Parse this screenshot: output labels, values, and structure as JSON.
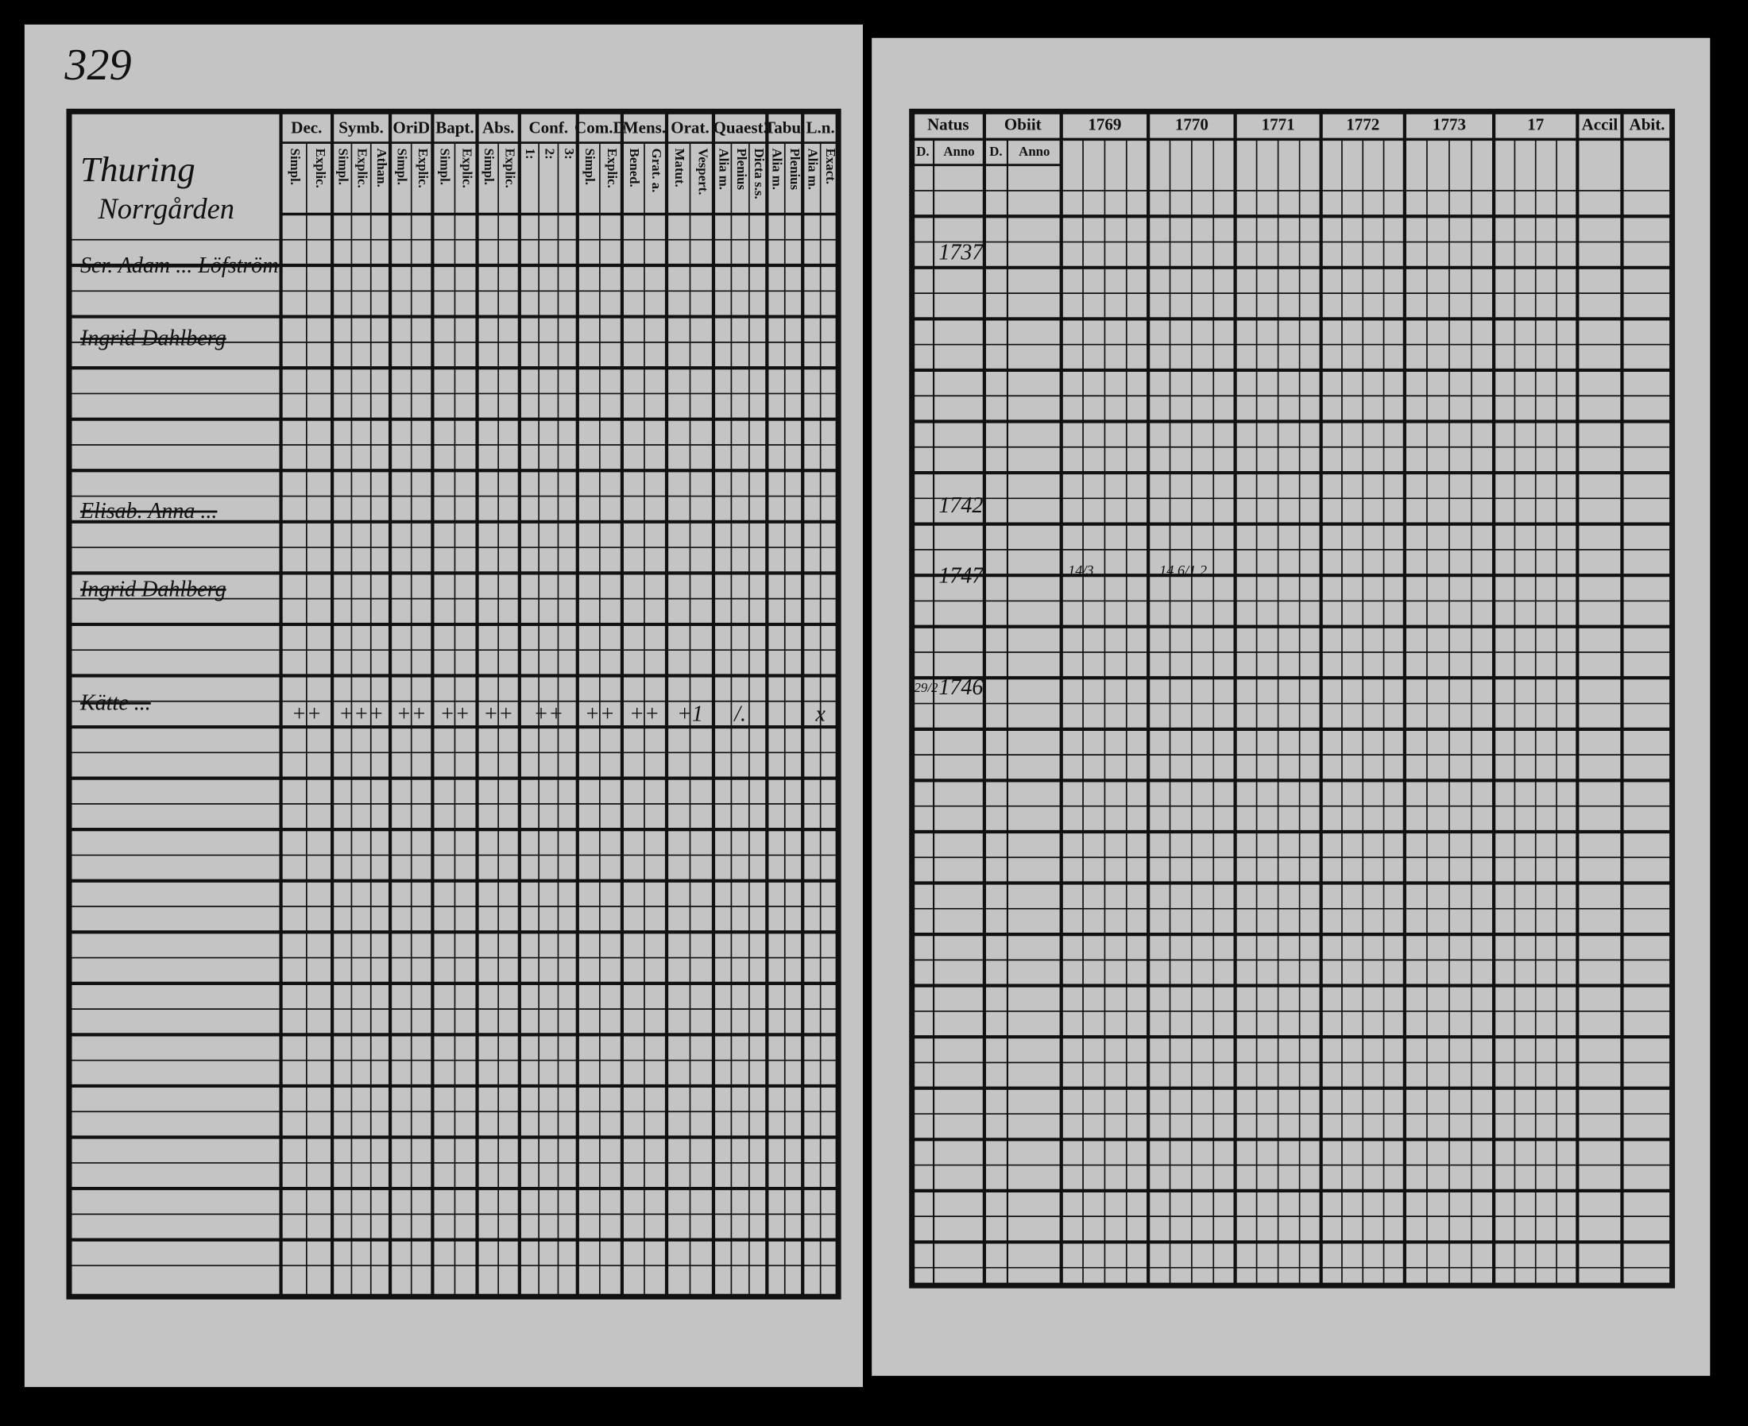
{
  "page_number": "329",
  "left_page": {
    "title": [
      "Thuring",
      "Norrgården"
    ],
    "column_groups": [
      {
        "label": "Dec.",
        "sub": [
          "Simpl.",
          "Explic."
        ]
      },
      {
        "label": "Symb.",
        "sub": [
          "Simpl.",
          "Explic.",
          "Athan."
        ]
      },
      {
        "label": "OriD",
        "sub": [
          "Simpl.",
          "Explic."
        ]
      },
      {
        "label": "Bapt.",
        "sub": [
          "Simpl.",
          "Explic."
        ]
      },
      {
        "label": "Abs.",
        "sub": [
          "Simpl.",
          "Explic."
        ]
      },
      {
        "label": "Conf.",
        "sub": [
          "1:",
          "2:",
          "3:"
        ]
      },
      {
        "label": "Com.D",
        "sub": [
          "Simpl.",
          "Explic."
        ]
      },
      {
        "label": "Mens.",
        "sub": [
          "Bened.",
          "Grat. a."
        ]
      },
      {
        "label": "Orat.",
        "sub": [
          "Matut.",
          "Vespert."
        ]
      },
      {
        "label": "Quaest.",
        "sub": [
          "Alia m.",
          "Plenius",
          "Dicta s.s."
        ]
      },
      {
        "label": "Tabu.",
        "sub": [
          "Alia m.",
          "Plenius"
        ]
      },
      {
        "label": "L.n.",
        "sub": [
          "Alia m.",
          "Exact."
        ]
      }
    ],
    "entries": [
      "Scr. Adam ... Löfström",
      "Ingrid Dahlberg",
      "Elisab. Anna ...",
      "Ingrid Dahlberg",
      "Kätte ..."
    ],
    "tally": [
      "++",
      "+++",
      "++",
      "++",
      "++",
      "++",
      "++",
      "++",
      "+1",
      "/.",
      null,
      "x"
    ]
  },
  "right_page": {
    "column_groups": [
      {
        "label": "Natus",
        "sub": [
          "D.",
          "Anno"
        ]
      },
      {
        "label": "Obiit",
        "sub": [
          "D.",
          "Anno"
        ]
      },
      {
        "label": "1769"
      },
      {
        "label": "1770"
      },
      {
        "label": "1771"
      },
      {
        "label": "1772"
      },
      {
        "label": "1773"
      },
      {
        "label": "17"
      },
      {
        "label": "Accil"
      },
      {
        "label": "Abit."
      }
    ],
    "entries": [
      {
        "day": null,
        "year": "1737"
      },
      {
        "day": null,
        "year": "1742"
      },
      {
        "day": null,
        "year": "1747",
        "notes": [
          "14/3",
          "14 6/1 2"
        ]
      },
      {
        "day": "29/2",
        "year": "1746"
      }
    ]
  }
}
